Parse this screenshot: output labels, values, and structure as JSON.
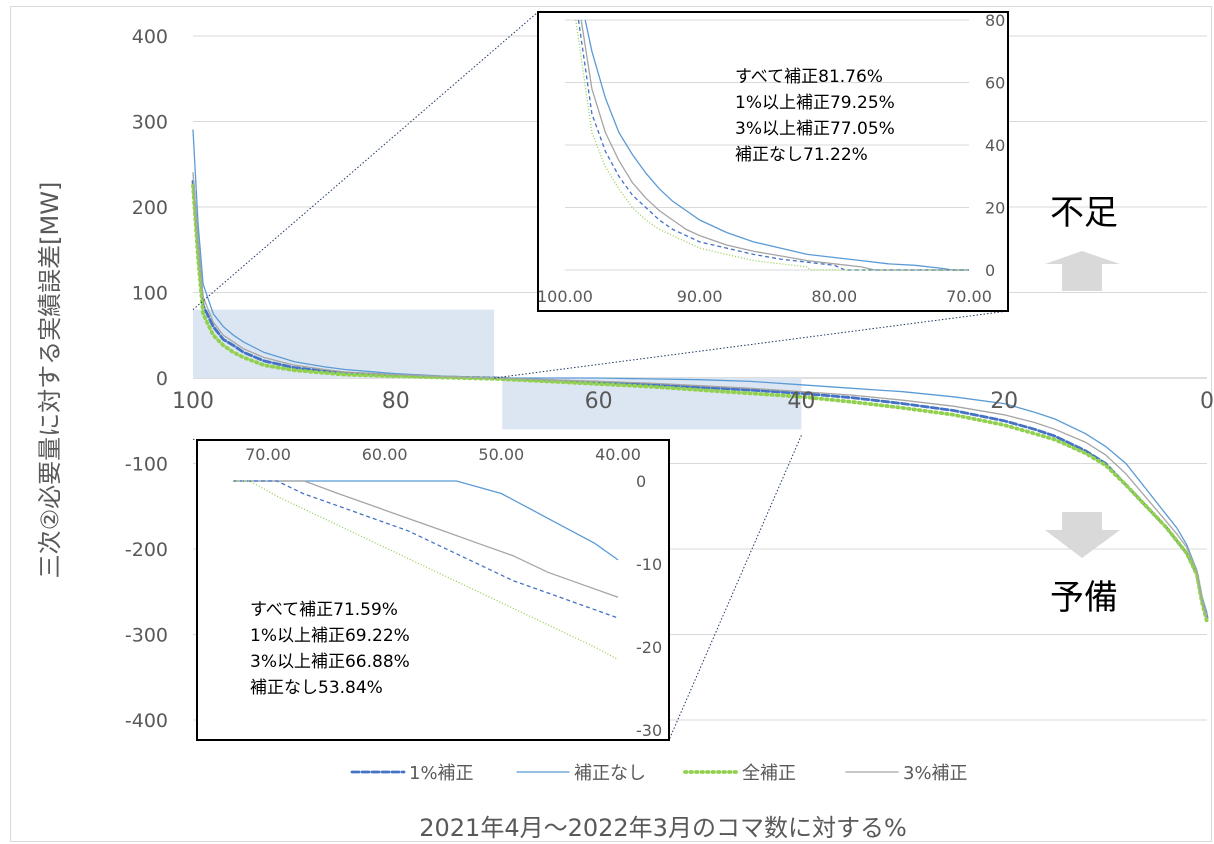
{
  "chart_data": {
    "type": "line",
    "title": "",
    "xlabel": "2021年4月～2022年3月のコマ数に対する%",
    "ylabel": "三次②必要量に対する実績誤差[MW]",
    "xlim": [
      100,
      0
    ],
    "ylim": [
      -400,
      400
    ],
    "x_ticks": [
      "100",
      "80",
      "60",
      "40",
      "20",
      "0"
    ],
    "y_ticks": [
      "400",
      "300",
      "200",
      "100",
      "0",
      "-100",
      "-200",
      "-300",
      "-400"
    ],
    "grid": true,
    "legend_position": "bottom",
    "series": [
      {
        "name": "1%補正",
        "color": "#4472c4",
        "style": "dashed",
        "x": [
          100,
          99.5,
          99,
          98,
          97,
          96,
          95,
          93,
          90,
          87,
          85,
          80,
          75,
          70,
          65,
          60,
          55,
          50,
          45,
          40,
          35,
          30,
          25,
          20,
          17,
          15,
          12,
          10,
          8,
          6,
          4,
          3,
          2,
          1,
          0.5,
          0
        ],
        "y": [
          230,
          150,
          85,
          60,
          45,
          38,
          30,
          20,
          12,
          8,
          6,
          3,
          1,
          0,
          -3,
          -5,
          -8,
          -11,
          -14,
          -18,
          -23,
          -30,
          -38,
          -50,
          -60,
          -68,
          -85,
          -100,
          -125,
          -150,
          -175,
          -190,
          -205,
          -230,
          -260,
          -280
        ]
      },
      {
        "name": "補正なし",
        "color": "#5b9bd5",
        "style": "solid",
        "x": [
          100,
          99.5,
          99,
          98,
          97,
          96,
          95,
          93,
          90,
          87,
          85,
          80,
          75,
          70,
          65,
          60,
          55,
          50,
          45,
          40,
          35,
          30,
          25,
          20,
          17,
          15,
          12,
          10,
          8,
          6,
          4,
          3,
          2,
          1,
          0.5,
          0
        ],
        "y": [
          290,
          180,
          110,
          75,
          60,
          50,
          42,
          30,
          19,
          13,
          10,
          5,
          2,
          0,
          0,
          0,
          -1,
          -2,
          -4,
          -8,
          -12,
          -16,
          -22,
          -30,
          -40,
          -48,
          -65,
          -80,
          -100,
          -130,
          -160,
          -175,
          -195,
          -225,
          -255,
          -275
        ]
      },
      {
        "name": "全補正",
        "color": "#92d050",
        "style": "dotted",
        "x": [
          100,
          99.5,
          99,
          98,
          97,
          96,
          95,
          93,
          90,
          87,
          85,
          80,
          75,
          70,
          65,
          60,
          55,
          50,
          45,
          40,
          35,
          30,
          25,
          20,
          17,
          15,
          12,
          10,
          8,
          6,
          4,
          3,
          2,
          1,
          0.5,
          0
        ],
        "y": [
          225,
          140,
          75,
          50,
          38,
          30,
          24,
          15,
          9,
          6,
          4,
          2,
          0.5,
          -1,
          -4,
          -7,
          -10,
          -14,
          -18,
          -22,
          -28,
          -35,
          -43,
          -55,
          -65,
          -72,
          -88,
          -102,
          -125,
          -150,
          -175,
          -190,
          -205,
          -230,
          -262,
          -285
        ]
      },
      {
        "name": "3%補正",
        "color": "#a5a5a5",
        "style": "solid",
        "x": [
          100,
          99.5,
          99,
          98,
          97,
          96,
          95,
          93,
          90,
          87,
          85,
          80,
          75,
          70,
          65,
          60,
          55,
          50,
          45,
          40,
          35,
          30,
          25,
          20,
          17,
          15,
          12,
          10,
          8,
          6,
          4,
          3,
          2,
          1,
          0.5,
          0
        ],
        "y": [
          240,
          160,
          95,
          65,
          50,
          42,
          34,
          24,
          15,
          10,
          7,
          4,
          1.5,
          0,
          -2,
          -4,
          -6,
          -9,
          -12,
          -16,
          -20,
          -26,
          -33,
          -43,
          -52,
          -60,
          -75,
          -90,
          -112,
          -140,
          -168,
          -182,
          -198,
          -225,
          -258,
          -280
        ]
      }
    ],
    "insets": [
      {
        "name": "top",
        "xlim": [
          100,
          70
        ],
        "ylim": [
          0,
          80
        ],
        "x_ticks": [
          "100.00",
          "90.00",
          "80.00",
          "70.00"
        ],
        "y_ticks": [
          "80",
          "60",
          "40",
          "20",
          "0"
        ],
        "annotations": [
          "すべて補正81.76%",
          "1%以上補正79.25%",
          "3%以上補正77.05%",
          "補正なし71.22%"
        ],
        "series": [
          {
            "name": "補正なし",
            "x": [
              98.5,
              98,
              97,
              96,
              95,
              94,
              93,
              92,
              91,
              90,
              88,
              86,
              84,
              82,
              80,
              78,
              76,
              74,
              72,
              71.2,
              70
            ],
            "y": [
              80,
              70,
              55,
              44,
              37,
              31,
              26,
              22,
              19,
              16,
              12,
              9,
              7,
              5,
              4,
              3,
              2,
              1.5,
              0.5,
              0,
              0
            ]
          },
          {
            "name": "3%補正",
            "x": [
              98.8,
              98,
              97,
              96,
              95,
              94,
              93,
              92,
              91,
              90,
              88,
              86,
              84,
              82,
              80,
              78,
              77,
              75,
              70
            ],
            "y": [
              80,
              58,
              44,
              35,
              28,
              23,
              19,
              16,
              13,
              11,
              8,
              6,
              4.5,
              3,
              2,
              1,
              0,
              0,
              0
            ]
          },
          {
            "name": "1%補正",
            "x": [
              99,
              98,
              97,
              96,
              95,
              94,
              93,
              92,
              91,
              90,
              88,
              86,
              84,
              82,
              80,
              79.2,
              78,
              75,
              70
            ],
            "y": [
              80,
              50,
              38,
              30,
              24,
              20,
              16,
              13,
              11,
              9,
              7,
              5,
              3.5,
              2.5,
              1.5,
              0,
              0,
              0,
              0
            ]
          },
          {
            "name": "全補正",
            "x": [
              99.2,
              98,
              97,
              96,
              95,
              94,
              93,
              92,
              91,
              90,
              88,
              86,
              84,
              82,
              81.8,
              80,
              75,
              70
            ],
            "y": [
              80,
              44,
              33,
              26,
              20,
              16,
              13,
              11,
              9,
              7,
              5,
              3,
              2,
              1,
              0,
              0,
              0,
              0
            ]
          }
        ]
      },
      {
        "name": "bottom",
        "xlim": [
          73,
          40
        ],
        "ylim": [
          -30,
          0
        ],
        "x_ticks": [
          "70.00",
          "60.00",
          "50.00",
          "40.00"
        ],
        "y_ticks": [
          "0",
          "-10",
          "-20",
          "-30"
        ],
        "annotations": [
          "すべて補正71.59%",
          "1%以上補正69.22%",
          "3%以上補正66.88%",
          "補正なし53.84%"
        ],
        "series": [
          {
            "name": "補正なし",
            "x": [
              73,
              53.84,
              50,
              48,
              46,
              44,
              42,
              40
            ],
            "y": [
              0,
              0,
              -1.5,
              -3,
              -4.5,
              -6,
              -7.5,
              -9.5
            ]
          },
          {
            "name": "3%補正",
            "x": [
              73,
              66.88,
              64,
              61,
              58,
              55,
              52,
              49,
              46,
              43,
              40
            ],
            "y": [
              0,
              0,
              -1.5,
              -3,
              -4.5,
              -6,
              -7.5,
              -9,
              -11,
              -12.5,
              -14
            ]
          },
          {
            "name": "1%補正",
            "x": [
              73,
              69.22,
              67,
              64,
              61,
              58,
              55,
              52,
              49,
              46,
              43,
              40
            ],
            "y": [
              0,
              0,
              -1.5,
              -3,
              -4.5,
              -6,
              -8,
              -10,
              -12,
              -13.5,
              -15,
              -16.5
            ]
          },
          {
            "name": "全補正",
            "x": [
              73,
              71.59,
              69,
              66,
              63,
              60,
              57,
              54,
              51,
              48,
              45,
              42,
              40
            ],
            "y": [
              0,
              0,
              -2,
              -4,
              -6,
              -8,
              -10,
              -12,
              -14,
              -16,
              -18,
              -20,
              -21.5
            ]
          }
        ]
      }
    ]
  },
  "labels": {
    "shortage": "不足",
    "reserve": "予備"
  },
  "colors": {
    "axis_text": "#595959",
    "grid": "#d9d9d9",
    "highlight_box": "#dce6f2",
    "arrow": "#d9d9d9"
  }
}
